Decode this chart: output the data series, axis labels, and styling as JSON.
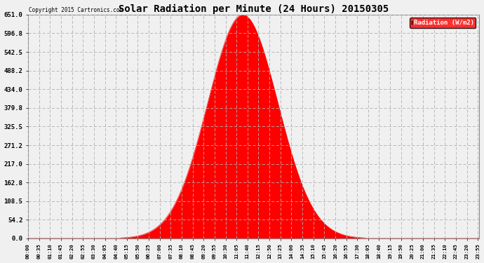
{
  "title": "Solar Radiation per Minute (24 Hours) 20150305",
  "copyright_text": "Copyright 2015 Cartronics.com",
  "legend_label": "Radiation (W/m2)",
  "legend_bg": "#ff0000",
  "legend_fg": "#ffffff",
  "fill_color": "#ff0000",
  "line_color": "#ff0000",
  "background_color": "#f0f0f0",
  "grid_color": "#b0b0b0",
  "yticks": [
    0.0,
    54.2,
    108.5,
    162.8,
    217.0,
    271.2,
    325.5,
    379.8,
    434.0,
    488.2,
    542.5,
    596.8,
    651.0
  ],
  "ymax": 651.0,
  "ymin": 0.0,
  "peak_value": 651.0,
  "peak_minute": 685,
  "sigma": 112.0,
  "total_minutes": 1440,
  "xtick_interval": 35
}
